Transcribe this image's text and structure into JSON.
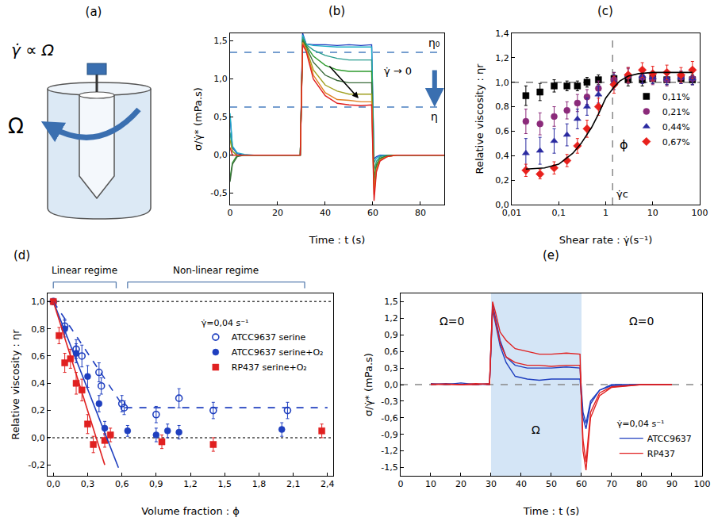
{
  "diagram": {
    "panel": "(a)",
    "formula": "γ̇ ∝ Ω",
    "rotation": "Ω"
  },
  "chart_data": [
    {
      "panel": "(b)",
      "type": "line",
      "x_label": "Time : t (s)",
      "y_label": "σ/γ̇* (mPa.s)",
      "grid": false,
      "xlim": [
        0,
        90
      ],
      "xticks": [
        0,
        20,
        40,
        60,
        80
      ],
      "ylim": [
        -0.65,
        1.6
      ],
      "yticks": [
        {
          "value": -0.5,
          "label": "-0,5"
        },
        {
          "value": 0,
          "label": "0,0"
        },
        {
          "value": 0.5,
          "label": "0,5"
        },
        {
          "value": 1,
          "label": "1,0"
        },
        {
          "value": 1.5,
          "label": "1,5"
        }
      ],
      "x": [
        0,
        1,
        3,
        6,
        10,
        20,
        29.5,
        30.5,
        32,
        35,
        40,
        45,
        50,
        55,
        59.5,
        60.5,
        61.5,
        63,
        66,
        70,
        80,
        90
      ],
      "series": [
        {
          "color": "#1f3fbf",
          "values": [
            0.5,
            0.1,
            0.02,
            0,
            0,
            0,
            0,
            1.6,
            1.46,
            1.45,
            1.45,
            1.44,
            1.45,
            1.44,
            1.45,
            -0.05,
            -0.02,
            0,
            0,
            0,
            0,
            0
          ]
        },
        {
          "color": "#20b0c8",
          "values": [
            0.55,
            0.12,
            0.03,
            0.01,
            0,
            0,
            0,
            1.58,
            1.46,
            1.44,
            1.43,
            1.42,
            1.42,
            1.42,
            1.42,
            -0.1,
            -0.04,
            -0.01,
            0,
            0,
            0,
            0
          ]
        },
        {
          "color": "#2a9d8f",
          "values": [
            0.3,
            0.05,
            0,
            0,
            0,
            0,
            0,
            1.55,
            1.45,
            1.38,
            1.31,
            1.27,
            1.25,
            1.25,
            1.25,
            -0.2,
            -0.08,
            -0.02,
            0,
            0,
            0,
            0
          ]
        },
        {
          "color": "#2e9b2e",
          "values": [
            -0.3,
            -0.1,
            0,
            0,
            0,
            0,
            0,
            1.52,
            1.44,
            1.3,
            1.18,
            1.12,
            1.1,
            1.1,
            1.1,
            -0.3,
            -0.12,
            -0.04,
            -0.01,
            0,
            0,
            0
          ]
        },
        {
          "color": "#3a6a3a",
          "values": [
            -0.35,
            -0.12,
            -0.02,
            0,
            0,
            0,
            0,
            1.5,
            1.42,
            1.22,
            1.05,
            0.98,
            0.95,
            0.95,
            0.95,
            -0.38,
            -0.15,
            -0.05,
            -0.01,
            0,
            0,
            0
          ]
        },
        {
          "color": "#a0a020",
          "values": [
            0.2,
            0.05,
            0,
            0,
            0,
            0,
            0,
            1.48,
            1.4,
            1.12,
            0.92,
            0.84,
            0.8,
            0.8,
            0.8,
            -0.45,
            -0.18,
            -0.06,
            -0.02,
            0,
            0,
            0
          ]
        },
        {
          "color": "#e08020",
          "values": [
            0,
            0,
            0,
            0,
            0,
            0,
            0,
            1.48,
            1.38,
            1.05,
            0.82,
            0.73,
            0.72,
            0.7,
            0.7,
            -0.52,
            -0.2,
            -0.07,
            -0.02,
            0,
            0,
            0
          ]
        },
        {
          "color": "#e02020",
          "values": [
            0.1,
            0,
            0,
            0,
            0,
            0,
            0,
            1.45,
            1.36,
            1.0,
            0.78,
            0.68,
            0.66,
            0.65,
            0.66,
            -0.6,
            -0.22,
            -0.08,
            -0.02,
            0,
            0,
            0
          ]
        }
      ],
      "reference_lines": [
        {
          "value": 1.35,
          "label": "η₀",
          "color": "#4a7fc0",
          "line_style": "dashed"
        },
        {
          "value": 0.63,
          "label": "η",
          "color": "#4a7fc0",
          "line_style": "dashed"
        }
      ],
      "notes": [
        "γ̇ → 0"
      ]
    },
    {
      "panel": "(c)",
      "type": "scatter",
      "x_label": "Shear rate : γ̇(s⁻¹)",
      "y_label": "Relative viscosity : ηr",
      "grid": false,
      "log": "x",
      "legend": "right",
      "xlim": [
        0.01,
        100
      ],
      "xticks": [
        {
          "value": 0.01,
          "label": "0,01"
        },
        {
          "value": 0.1,
          "label": "0,1"
        },
        1,
        10,
        100
      ],
      "ylim": [
        0,
        1.4
      ],
      "yticks": [
        {
          "value": 0,
          "label": "0,0"
        },
        {
          "value": 0.2,
          "label": "0,2"
        },
        {
          "value": 0.4,
          "label": "0,4"
        },
        {
          "value": 0.6,
          "label": "0,6"
        },
        {
          "value": 0.8,
          "label": "0,8"
        },
        {
          "value": 1,
          "label": "1,0"
        },
        {
          "value": 1.2,
          "label": "1,2"
        },
        {
          "value": 1.4,
          "label": "1,4"
        }
      ],
      "x": [
        0.02,
        0.04,
        0.08,
        0.15,
        0.25,
        0.4,
        0.7,
        1.5,
        3,
        6,
        10,
        20,
        40,
        70
      ],
      "series": [
        {
          "name": "0,11%",
          "color": "#000000",
          "marker": "square",
          "values": [
            0.89,
            0.92,
            0.97,
            0.97,
            0.97,
            1.0,
            1.02,
            1.03,
            1.02,
            1.02,
            1.03,
            1.02,
            1.03,
            1.02
          ],
          "errors": [
            0.08,
            0.07,
            0.05,
            0.04,
            0.04,
            0.04,
            0.04,
            0.05,
            0.05,
            0.05,
            0.04,
            0.04,
            0.04,
            0.04
          ]
        },
        {
          "name": "0,21%",
          "color": "#8b2a7a",
          "marker": "circle",
          "values": [
            0.68,
            0.66,
            0.72,
            0.77,
            0.83,
            0.88,
            0.95,
            1.02,
            1.05,
            1.04,
            1.03,
            1.02,
            1.04,
            1.03
          ],
          "errors": [
            0.1,
            0.09,
            0.08,
            0.07,
            0.07,
            0.06,
            0.06,
            0.06,
            0.06,
            0.05,
            0.05,
            0.05,
            0.05,
            0.05
          ]
        },
        {
          "name": "0,44%",
          "color": "#2a2aa0",
          "marker": "triangle",
          "values": [
            0.42,
            0.44,
            0.52,
            0.57,
            0.7,
            0.8,
            0.9,
            1.0,
            1.06,
            1.05,
            1.04,
            1.03,
            1.04,
            1.03
          ],
          "errors": [
            0.12,
            0.11,
            0.1,
            0.09,
            0.08,
            0.07,
            0.07,
            0.06,
            0.06,
            0.06,
            0.05,
            0.05,
            0.05,
            0.05
          ]
        },
        {
          "name": "0,67%",
          "color": "#e8201c",
          "marker": "diamond",
          "values": [
            0.28,
            0.25,
            0.3,
            0.36,
            0.48,
            0.62,
            0.8,
            0.98,
            1.06,
            1.1,
            1.07,
            1.08,
            1.06,
            1.1
          ],
          "errors": [
            0.05,
            0.04,
            0.05,
            0.05,
            0.06,
            0.07,
            0.07,
            0.07,
            0.06,
            0.06,
            0.06,
            0.06,
            0.06,
            0.07
          ]
        },
        {
          "type": "line",
          "color": "#000000",
          "line_style": "solid",
          "x": [
            0.02,
            0.05,
            0.1,
            0.2,
            0.3,
            0.5,
            0.7,
            1,
            1.5,
            2,
            3,
            5,
            10,
            30,
            70
          ],
          "values": [
            0.29,
            0.3,
            0.33,
            0.42,
            0.5,
            0.63,
            0.74,
            0.87,
            0.96,
            1.01,
            1.05,
            1.07,
            1.08,
            1.08,
            1.08
          ]
        }
      ],
      "reference_lines": [
        {
          "value": 1,
          "color": "#777777",
          "line_style": "dashed"
        }
      ],
      "vline": {
        "value": 1.4,
        "label": "γ̇c",
        "color": "#777777",
        "line_style": "dashed"
      },
      "notes": [
        "ϕ"
      ]
    },
    {
      "panel": "(d)",
      "type": "scatter",
      "x_label": "Volume fraction : ϕ",
      "y_label": "Relative viscosity : ηr",
      "grid": false,
      "legend": "top right",
      "legend_title": "γ̇=0,04 s⁻¹",
      "xlim": [
        -0.05,
        2.45
      ],
      "xticks": [
        {
          "value": 0,
          "label": "0,0"
        },
        {
          "value": 0.3,
          "label": "0,3"
        },
        {
          "value": 0.6,
          "label": "0,6"
        },
        {
          "value": 0.9,
          "label": "0,9"
        },
        {
          "value": 1.2,
          "label": "1,2"
        },
        {
          "value": 1.5,
          "label": "1,5"
        },
        {
          "value": 1.8,
          "label": "1,8"
        },
        {
          "value": 2.1,
          "label": "2,1"
        },
        {
          "value": 2.4,
          "label": "2,4"
        }
      ],
      "ylim": [
        -0.28,
        1.06
      ],
      "yticks": [
        {
          "value": -0.2,
          "label": "-0,2"
        },
        {
          "value": 0,
          "label": "0,0"
        },
        {
          "value": 0.2,
          "label": "0,2"
        },
        {
          "value": 0.4,
          "label": "0,4"
        },
        {
          "value": 0.6,
          "label": "0,6"
        },
        {
          "value": 0.8,
          "label": "0,8"
        },
        {
          "value": 1,
          "label": "1,0"
        }
      ],
      "series": [
        {
          "name": "ATCC9637 serine",
          "color": "#1f3fbf",
          "marker": "circle-open",
          "x": [
            0,
            0.1,
            0.2,
            0.25,
            0.4,
            0.42,
            0.6,
            0.62,
            0.9,
            1.1,
            1.4,
            2.05
          ],
          "values": [
            1.0,
            0.82,
            0.65,
            0.6,
            0.48,
            0.38,
            0.25,
            0.22,
            0.17,
            0.29,
            0.2,
            0.2
          ],
          "errors": [
            0,
            0.05,
            0.07,
            0.08,
            0.07,
            0.06,
            0.06,
            0.05,
            0.06,
            0.07,
            0.06,
            0.06
          ]
        },
        {
          "name": "ATCC9637 serine+O₂",
          "color": "#1f3fbf",
          "marker": "circle",
          "x": [
            0,
            0.1,
            0.2,
            0.3,
            0.4,
            0.45,
            0.65,
            0.9,
            1.0,
            1.1,
            2.0
          ],
          "values": [
            1.0,
            0.8,
            0.62,
            0.45,
            0.25,
            0.07,
            0.05,
            0.02,
            0.05,
            0.04,
            0.06
          ],
          "errors": [
            0,
            0.06,
            0.07,
            0.08,
            0.06,
            0.05,
            0.04,
            0.05,
            0.05,
            0.05,
            0.05
          ]
        },
        {
          "name": "RP437 serine+O₂",
          "color": "#e02020",
          "marker": "square",
          "x": [
            0,
            0.05,
            0.1,
            0.15,
            0.2,
            0.25,
            0.3,
            0.35,
            0.45,
            0.5,
            0.95,
            1.4,
            2.35
          ],
          "values": [
            1.0,
            0.75,
            0.55,
            0.58,
            0.4,
            0.35,
            0.1,
            -0.05,
            -0.02,
            0.02,
            -0.03,
            -0.05,
            0.05
          ],
          "errors": [
            0,
            0.06,
            0.07,
            0.07,
            0.08,
            0.08,
            0.07,
            0.06,
            0.05,
            0.05,
            0.05,
            0.05,
            0.05
          ]
        },
        {
          "type": "line",
          "color": "#1f3fbf",
          "line_style": "dashed",
          "x": [
            0,
            0.62,
            2.4
          ],
          "values": [
            1.0,
            0.22,
            0.22
          ]
        },
        {
          "type": "line",
          "color": "#1f3fbf",
          "line_style": "solid",
          "x": [
            0,
            0.57
          ],
          "values": [
            1.0,
            -0.22
          ]
        },
        {
          "type": "line",
          "color": "#e02020",
          "line_style": "solid",
          "x": [
            0,
            0.45
          ],
          "values": [
            1.0,
            -0.2
          ]
        }
      ],
      "reference_lines": [
        {
          "value": 1,
          "color": "#444444",
          "line_style": "dotted"
        },
        {
          "value": 0,
          "color": "#444444",
          "line_style": "dotted"
        }
      ],
      "regimes": [
        {
          "label": "Linear regime",
          "range": [
            0,
            0.55
          ]
        },
        {
          "label": "Non-linear regime",
          "range": [
            0.65,
            2.2
          ]
        }
      ]
    },
    {
      "panel": "(e)",
      "type": "line",
      "x_label": "Time : t (s)",
      "y_label": "σ/γ̇* (mPa.s)",
      "grid": false,
      "legend": "bottom right",
      "legend_title": "γ̇=0,04 s⁻¹",
      "xlim": [
        0,
        100
      ],
      "xticks": [
        0,
        10,
        20,
        30,
        40,
        50,
        60,
        70,
        80,
        90,
        100
      ],
      "ylim": [
        -1.65,
        1.65
      ],
      "yticks": [
        {
          "value": -1.5,
          "label": "-1,5"
        },
        {
          "value": -1.2,
          "label": "-1,2"
        },
        {
          "value": -0.9,
          "label": "-0,9"
        },
        {
          "value": -0.6,
          "label": "-0,6"
        },
        {
          "value": -0.3,
          "label": "-0,3"
        },
        {
          "value": 0,
          "label": "0,0"
        },
        {
          "value": 0.3,
          "label": "0,3"
        },
        {
          "value": 0.6,
          "label": "0,6"
        },
        {
          "value": 0.9,
          "label": "0,9"
        },
        {
          "value": 1.2,
          "label": "1,2"
        },
        {
          "value": 1.5,
          "label": "1,5"
        }
      ],
      "x": [
        10,
        15,
        20,
        25,
        29.5,
        30.5,
        31.5,
        33,
        35,
        38,
        42,
        46,
        50,
        55,
        59.5,
        60.5,
        61.5,
        63,
        66,
        70,
        80,
        90
      ],
      "series": [
        {
          "name": "ATCC9637",
          "color": "#1f3fbf",
          "values": [
            0.02,
            0,
            0.03,
            0,
            0.02,
            1.45,
            1.2,
            0.8,
            0.5,
            0.35,
            0.3,
            0.3,
            0.3,
            0.32,
            0.3,
            -0.5,
            -0.7,
            -0.3,
            -0.1,
            0,
            0,
            0
          ]
        },
        {
          "color": "#1f3fbf",
          "values": [
            0,
            0.02,
            0,
            0.01,
            0,
            1.35,
            1.1,
            0.7,
            0.4,
            0.15,
            0.1,
            0.08,
            0.1,
            0.1,
            0.1,
            -0.6,
            -0.8,
            -0.35,
            -0.1,
            -0.02,
            0,
            0
          ]
        },
        {
          "name": "RP437",
          "color": "#e02020",
          "values": [
            0,
            0.01,
            0,
            0.02,
            0,
            1.5,
            1.3,
            0.95,
            0.8,
            0.65,
            0.6,
            0.55,
            0.55,
            0.57,
            0.55,
            -1.2,
            -1.55,
            -0.6,
            -0.2,
            -0.05,
            0,
            0
          ]
        },
        {
          "color": "#e02020",
          "values": [
            0.01,
            0,
            0,
            0,
            0.02,
            1.4,
            1.15,
            0.75,
            0.5,
            0.4,
            0.35,
            0.35,
            0.33,
            0.35,
            0.35,
            -1.0,
            -1.4,
            -0.5,
            -0.15,
            -0.04,
            0,
            0
          ]
        }
      ],
      "reference_lines": [
        {
          "value": 0,
          "color": "#888888",
          "line_style": "dashed"
        }
      ],
      "rotation_interval": [
        30,
        60
      ],
      "notes": [
        "Ω=0",
        "Ω",
        "Ω=0"
      ]
    }
  ]
}
